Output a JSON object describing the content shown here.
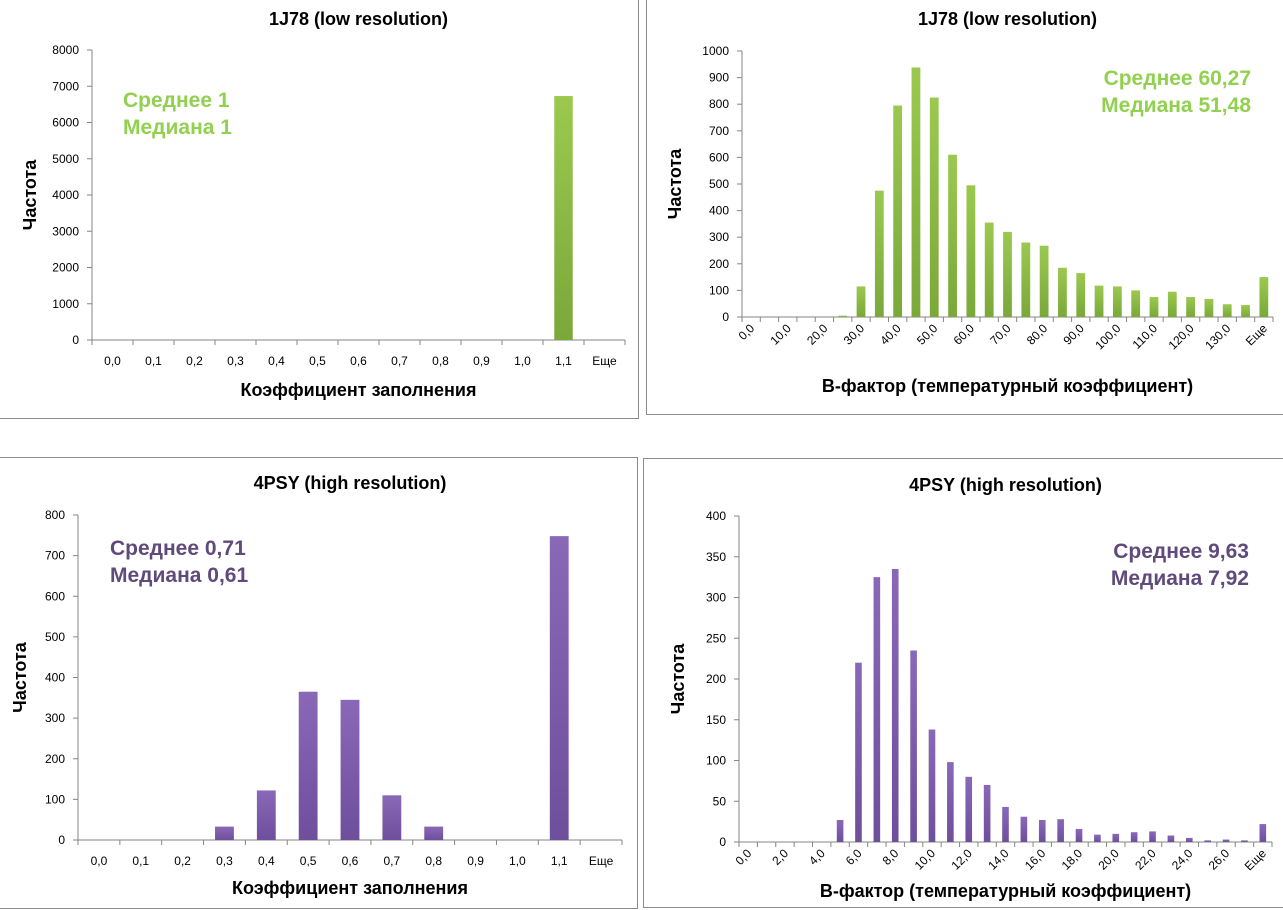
{
  "colors": {
    "green": "#7aa83a",
    "green_light": "#9bc94f",
    "green_text": "#92d050",
    "purple": "#6e4f9c",
    "purple_light": "#8a68b8",
    "purple_text": "#604a7b"
  },
  "chart_data": [
    {
      "type": "bar",
      "title": "1J78 (low resolution)",
      "xlabel": "Коэффициент заполнения",
      "ylabel": "Частота",
      "ylim": [
        0,
        8000
      ],
      "yticks": [
        "0",
        "1000",
        "2000",
        "3000",
        "4000",
        "5000",
        "6000",
        "7000",
        "8000"
      ],
      "categories": [
        "0,0",
        "0,1",
        "0,2",
        "0,3",
        "0,4",
        "0,5",
        "0,6",
        "0,7",
        "0,8",
        "0,9",
        "1,0",
        "1,1",
        "Еще"
      ],
      "values": [
        0,
        0,
        0,
        0,
        0,
        0,
        0,
        0,
        0,
        0,
        0,
        6730,
        0
      ],
      "annotations": [
        "Среднее 1",
        "Медиана 1"
      ],
      "color": "green"
    },
    {
      "type": "bar",
      "title": "1J78 (low resolution)",
      "xlabel": "B-фактор (температурный коэффициент)",
      "ylabel": "Частота",
      "ylim": [
        0,
        1000
      ],
      "yticks": [
        "0",
        "100",
        "200",
        "300",
        "400",
        "500",
        "600",
        "700",
        "800",
        "900",
        "1000"
      ],
      "categories": [
        "0,0",
        "5,0",
        "10,0",
        "15,0",
        "20,0",
        "25,0",
        "30,0",
        "35,0",
        "40,0",
        "45,0",
        "50,0",
        "55,0",
        "60,0",
        "65,0",
        "70,0",
        "75,0",
        "80,0",
        "85,0",
        "90,0",
        "95,0",
        "100,0",
        "105,0",
        "110,0",
        "115,0",
        "120,0",
        "125,0",
        "130,0",
        "135,0",
        "Еще"
      ],
      "tick_labels": [
        "0,0",
        "",
        "10,0",
        "",
        "20,0",
        "",
        "30,0",
        "",
        "40,0",
        "",
        "50,0",
        "",
        "60,0",
        "",
        "70,0",
        "",
        "80,0",
        "",
        "90,0",
        "",
        "100,0",
        "",
        "110,0",
        "",
        "120,0",
        "",
        "130,0",
        "",
        "Еще"
      ],
      "values": [
        0,
        0,
        0,
        0,
        0,
        5,
        115,
        475,
        795,
        938,
        825,
        610,
        495,
        355,
        320,
        280,
        268,
        185,
        165,
        118,
        115,
        100,
        75,
        95,
        75,
        68,
        48,
        45,
        150
      ],
      "annotations": [
        "Среднее 60,27",
        "Медиана 51,48"
      ],
      "color": "green"
    },
    {
      "type": "bar",
      "title": "4PSY (high resolution)",
      "xlabel": "Коэффициент заполнения",
      "ylabel": "Частота",
      "ylim": [
        0,
        800
      ],
      "yticks": [
        "0",
        "100",
        "200",
        "300",
        "400",
        "500",
        "600",
        "700",
        "800"
      ],
      "categories": [
        "0,0",
        "0,1",
        "0,2",
        "0,3",
        "0,4",
        "0,5",
        "0,6",
        "0,7",
        "0,8",
        "0,9",
        "1,0",
        "1,1",
        "Еще"
      ],
      "values": [
        0,
        0,
        0,
        33,
        122,
        365,
        345,
        110,
        33,
        0,
        0,
        748,
        0
      ],
      "annotations": [
        "Среднее 0,71",
        "Медиана 0,61"
      ],
      "color": "purple"
    },
    {
      "type": "bar",
      "title": "4PSY (high resolution)",
      "xlabel": "B-фактор (температурный коэффициент)",
      "ylabel": "Частота",
      "ylim": [
        0,
        400
      ],
      "yticks": [
        "0",
        "50",
        "100",
        "150",
        "200",
        "250",
        "300",
        "350",
        "400"
      ],
      "categories": [
        "0,0",
        "1,0",
        "2,0",
        "3,0",
        "4,0",
        "5,0",
        "6,0",
        "7,0",
        "8,0",
        "9,0",
        "10,0",
        "11,0",
        "12,0",
        "13,0",
        "14,0",
        "15,0",
        "16,0",
        "17,0",
        "18,0",
        "19,0",
        "20,0",
        "21,0",
        "22,0",
        "23,0",
        "24,0",
        "25,0",
        "26,0",
        "27,0",
        "Еще"
      ],
      "tick_labels": [
        "0,0",
        "",
        "2,0",
        "",
        "4,0",
        "",
        "6,0",
        "",
        "8,0",
        "",
        "10,0",
        "",
        "12,0",
        "",
        "14,0",
        "",
        "16,0",
        "",
        "18,0",
        "",
        "20,0",
        "",
        "22,0",
        "",
        "24,0",
        "",
        "26,0",
        "",
        "Еще"
      ],
      "values": [
        0,
        0,
        0,
        0,
        0,
        27,
        220,
        325,
        335,
        235,
        138,
        98,
        80,
        70,
        43,
        31,
        27,
        28,
        16,
        9,
        10,
        12,
        13,
        8,
        5,
        2,
        3,
        2,
        22
      ],
      "annotations": [
        "Среднее 9,63",
        "Медиана 7,92"
      ],
      "color": "purple"
    }
  ]
}
